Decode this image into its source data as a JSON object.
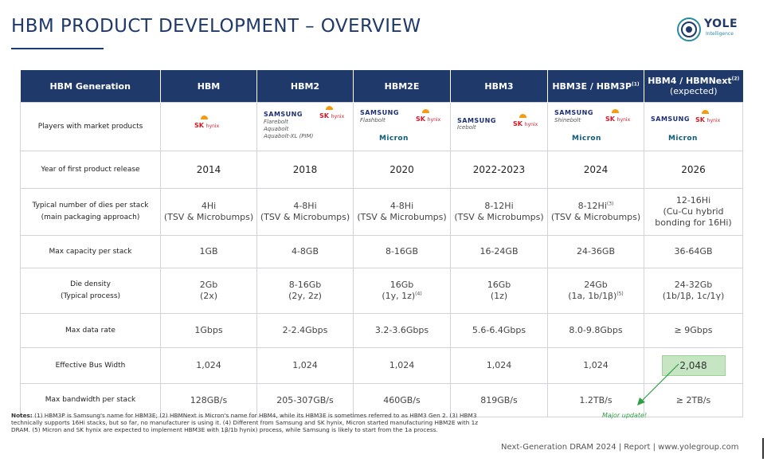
{
  "title": "HBM PRODUCT DEVELOPMENT – OVERVIEW",
  "logo": {
    "name": "YOLE",
    "sub": "Intelligence"
  },
  "table": {
    "header": {
      "label": "HBM Generation",
      "cols": [
        "HBM",
        "HBM2",
        "HBM2E",
        "HBM3",
        "HBM3E / HBM3P",
        "HBM4 / HBMNext"
      ],
      "col5_sup": "(1)",
      "col6_sup": "(2)",
      "col6_sub": "(expected)"
    },
    "players": {
      "label": "Players with market products",
      "samsung": "SAMSUNG",
      "sk": "SK",
      "hynix": "hynix",
      "micron": "Micron",
      "hbm2_codes": [
        "Flarebolt",
        "Aquabolt",
        "Aquabolt-XL (PIM)"
      ],
      "hbm2e_code": "Flashbolt",
      "hbm3_code": "Icebolt",
      "hbm3e_code": "Shinebolt"
    },
    "year": {
      "label": "Year of first product release",
      "values": [
        "2014",
        "2018",
        "2020",
        "2022-2023",
        "2024",
        "2026"
      ]
    },
    "dies": {
      "label1": "Typical number of dies per stack",
      "label2": "(main packaging approach)",
      "values": [
        "4Hi",
        "4-8Hi",
        "4-8Hi",
        "8-12Hi",
        "8-12Hi",
        "12-16Hi"
      ],
      "sup5": "(3)",
      "sub": [
        "(TSV & Microbumps)",
        "(TSV & Microbumps)",
        "(TSV & Microbumps)",
        "(TSV & Microbumps)",
        "(TSV & Microbumps)"
      ],
      "sub6a": "(Cu-Cu hybrid",
      "sub6b": "bonding for 16Hi)"
    },
    "capacity": {
      "label": "Max capacity per stack",
      "values": [
        "1GB",
        "4-8GB",
        "8-16GB",
        "16-24GB",
        "24-36GB",
        "36-64GB"
      ]
    },
    "density": {
      "label1": "Die density",
      "label2": "(Typical process)",
      "values": [
        "2Gb",
        "8-16Gb",
        "16Gb",
        "16Gb",
        "24Gb",
        "24-32Gb"
      ],
      "process": [
        "(2x)",
        "(2y, 2z)",
        "(1y, 1z)",
        "(1z)",
        "(1a, 1b/1β)",
        "(1b/1β, 1c/1γ)"
      ],
      "sup3": "(4)",
      "sup5": "(5)"
    },
    "rate": {
      "label": "Max data rate",
      "values": [
        "1Gbps",
        "2-2.4Gbps",
        "3.2-3.6Gbps",
        "5.6-6.4Gbps",
        "8.0-9.8Gbps",
        "≥ 9Gbps"
      ]
    },
    "bus": {
      "label": "Effective Bus Width",
      "values": [
        "1,024",
        "1,024",
        "1,024",
        "1,024",
        "1,024",
        "2,048"
      ]
    },
    "bandwidth": {
      "label": "Max bandwidth per stack",
      "values": [
        "128GB/s",
        "205-307GB/s",
        "460GB/s",
        "819GB/s",
        "1.2TB/s",
        "≥ 2TB/s"
      ]
    }
  },
  "annotation": "Major update!",
  "notes": {
    "prefix": "Notes:",
    "text": " (1) HBM3P is Samsung's name for HBM3E; (2) HBMNext is Micron's name for HBM4, while its HBM3E is sometimes referred to as HBM3 Gen 2. (3) HBM3 technically supports 16Hi stacks, but so far, no manufacturer is using it. (4) Different from Samsung and SK hynix, Micron started manufacturing HBM2E with 1z DRAM. (5) Micron and SK hynix are expected to implement HBM3E with 1β/1b hynix) process, while Samsung is likely to start from the 1a process."
  },
  "footer": "Next-Generation DRAM 2024 | Report | www.yolegroup.com",
  "colors": {
    "header_bg": "#1f3a6a",
    "highlight": "#c5e5c3",
    "annotation": "#2f9e44"
  }
}
